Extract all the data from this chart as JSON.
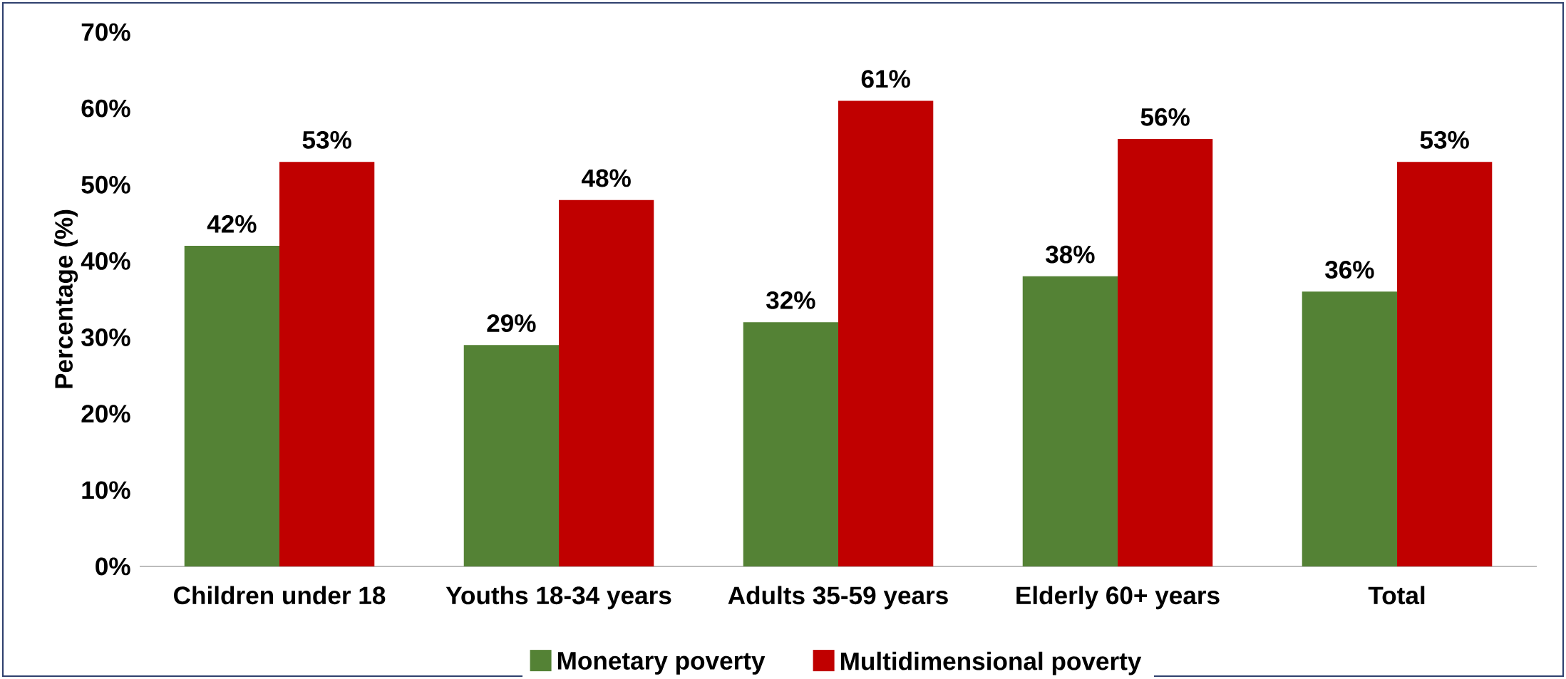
{
  "chart_data": {
    "type": "bar",
    "ylabel": "Percentage (%)",
    "categories": [
      "Children under 18",
      "Youths 18-34 years",
      "Adults 35-59 years",
      "Elderly 60+ years",
      "Total"
    ],
    "series": [
      {
        "name": "Monetary poverty",
        "color": "#548235",
        "values": [
          42,
          29,
          32,
          38,
          36
        ],
        "value_labels": [
          "42%",
          "29%",
          "32%",
          "38%",
          "36%"
        ]
      },
      {
        "name": "Multidimensional poverty",
        "color": "#c00000",
        "values": [
          53,
          48,
          61,
          56,
          53
        ],
        "value_labels": [
          "53%",
          "48%",
          "61%",
          "56%",
          "53%"
        ]
      }
    ],
    "ylim": [
      0,
      70
    ],
    "yticks": [
      {
        "value": 0,
        "label": "0%"
      },
      {
        "value": 10,
        "label": "10%"
      },
      {
        "value": 20,
        "label": "20%"
      },
      {
        "value": 30,
        "label": "30%"
      },
      {
        "value": 40,
        "label": "40%"
      },
      {
        "value": 50,
        "label": "50%"
      },
      {
        "value": 60,
        "label": "60%"
      },
      {
        "value": 70,
        "label": "70%"
      }
    ],
    "legend": "bottom",
    "grid": false
  }
}
